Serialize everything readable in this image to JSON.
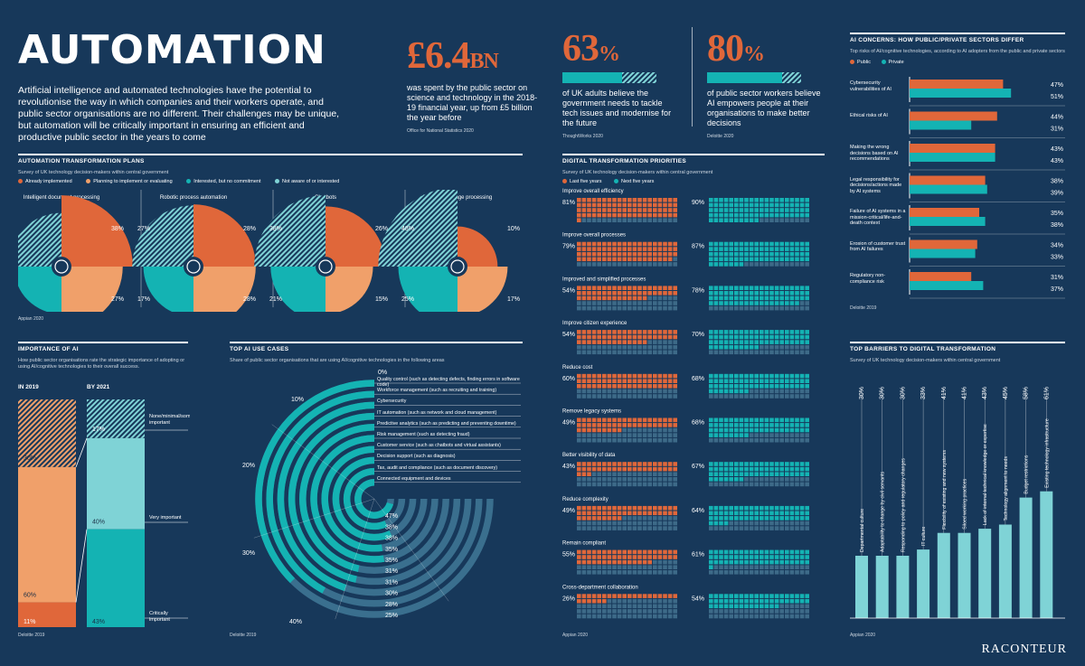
{
  "title": "AUTOMATION",
  "intro": "Artificial intelligence and automated technologies have the potential to revolutionise the way in which companies and their workers operate, and public sector organisations are no different. Their challenges may be unique, but automation will be critically important in ensuring an efficient and productive public sector in the years to come",
  "colors": {
    "bg": "#17385a",
    "orange": "#e0673a",
    "light_orange": "#f0a06a",
    "teal": "#14b3b3",
    "light_teal": "#7fd3d6",
    "grey": "#3d6a88",
    "white": "#ffffff"
  },
  "stats": [
    {
      "num": "£6.4",
      "unit": "BN",
      "text": "was spent by the public sector on science and technology in the 2018-19 financial year, up from £5 billion the year before",
      "source": "Office for National Statistics 2020"
    },
    {
      "num": "63",
      "unit": "%",
      "text": "of UK adults believe the government needs to tackle tech issues and modernise for the future",
      "source": "ThoughtWorks 2020",
      "value": 63
    },
    {
      "num": "80",
      "unit": "%",
      "text": "of public sector workers believe AI empowers people at their organisations to make better decisions",
      "source": "Deloitte 2020",
      "value": 80
    }
  ],
  "brand": "RACONTEUR",
  "chart_data": [
    {
      "id": "transformation_plans",
      "type": "pie",
      "title": "AUTOMATION TRANSFORMATION PLANS",
      "subtitle": "Survey of UK technology decision-makers within central government",
      "legend": [
        "Already implemented",
        "Planning to implement or evaluating",
        "Interested, but no commitment",
        "Not aware of or interested"
      ],
      "charts": [
        {
          "name": "Intelligent document processing",
          "values": [
            38,
            27,
            15,
            20
          ]
        },
        {
          "name": "Robotic process automation",
          "values": [
            28,
            28,
            17,
            27
          ]
        },
        {
          "name": "Chatbots",
          "values": [
            26,
            15,
            21,
            38
          ]
        },
        {
          "name": "Natural language processing",
          "values": [
            10,
            17,
            25,
            48
          ]
        }
      ],
      "source": "Appian 2020"
    },
    {
      "id": "ai_concerns",
      "type": "bar",
      "title": "AI CONCERNS: HOW PUBLIC/PRIVATE SECTORS DIFFER",
      "subtitle": "Top risks of AI/cognitive technologies, according to AI adopters from the public and private sectors",
      "series_names": [
        "Public",
        "Private"
      ],
      "categories": [
        "Cybersecurity vulnerabilities of AI",
        "Ethical risks of AI",
        "Making the wrong decisions based on AI recommendations",
        "Legal responsibility for decisions/actions made by AI systems",
        "Failure of AI systems in a mission-critical/life-and-death context",
        "Erosion of customer trust from AI failures",
        "Regulatory non-compliance risk"
      ],
      "public": [
        47,
        44,
        43,
        38,
        35,
        34,
        31
      ],
      "private": [
        51,
        31,
        43,
        39,
        38,
        33,
        37
      ],
      "source": "Deloitte 2019"
    },
    {
      "id": "digital_priorities",
      "type": "bar",
      "title": "DIGITAL TRANSFORMATION PRIORITIES",
      "subtitle": "Survey of UK technology decision-makers within central government",
      "series_names": [
        "Last five years",
        "Next five years"
      ],
      "categories": [
        "Improve overall efficiency",
        "Improve overall processes",
        "Improved and simplified processes",
        "Improve citizen experience",
        "Reduce cost",
        "Remove legacy systems",
        "Better visibility of data",
        "Reduce complexity",
        "Remain compliant",
        "Cross-department collaboration"
      ],
      "last": [
        81,
        79,
        54,
        54,
        60,
        49,
        43,
        49,
        55,
        26
      ],
      "next": [
        90,
        87,
        78,
        70,
        68,
        68,
        67,
        64,
        61,
        54
      ],
      "source": "Appian 2020"
    },
    {
      "id": "importance",
      "type": "bar",
      "title": "IMPORTANCE OF AI",
      "subtitle": "How public sector organisations rate the strategic importance of adopting or using AI/cognitive technologies to their overall success.",
      "categories": [
        "IN 2019",
        "BY 2021"
      ],
      "segments": [
        "None/minimal/somewhat important",
        "Very important",
        "Critically important"
      ],
      "y2019": [
        30,
        60,
        11
      ],
      "y2021": [
        17,
        40,
        43
      ],
      "source": "Deloitte 2019"
    },
    {
      "id": "ai_use_cases",
      "type": "bar",
      "title": "TOP AI USE CASES",
      "subtitle": "Share of public sector organisations that are using AI/cognitive technologies in the following areas",
      "categories": [
        "Quality control (such as detecting defects, finding errors in software code)",
        "Workforce management (such as recruiting and training)",
        "Cybersecurity",
        "IT automation (such as network and cloud management)",
        "Predictive analytics (such as predicting and preventing downtime)",
        "Risk management (such as detecting fraud)",
        "Customer service (such as chatbots and virtual assistants)",
        "Decision support (such as diagnosis)",
        "Tax, audit and compliance (such as document discovery)",
        "Connected equipment and devices"
      ],
      "values": [
        25,
        28,
        30,
        31,
        31,
        35,
        35,
        38,
        38,
        47
      ],
      "scale_ticks": [
        "0%",
        "10%",
        "20%",
        "30%",
        "40%"
      ],
      "source": "Deloitte 2019"
    },
    {
      "id": "barriers",
      "type": "bar",
      "title": "TOP BARRIERS TO DIGITAL TRANSFORMATION",
      "subtitle": "Survey of UK technology decision-makers within central government",
      "categories": [
        "Departmental culture",
        "Adaptability to change by civil servants",
        "Responding to policy and regulatory changes",
        "IT culture",
        "Flexibility of existing and new systems",
        "Siloed working practices",
        "Lack of internal technical knowledge or expertise",
        "Technology alignment to needs",
        "Budget restrictions",
        "Existing technology infrastructure"
      ],
      "values": [
        30,
        30,
        30,
        33,
        41,
        41,
        43,
        45,
        58,
        61
      ],
      "source": "Appian 2020"
    }
  ]
}
